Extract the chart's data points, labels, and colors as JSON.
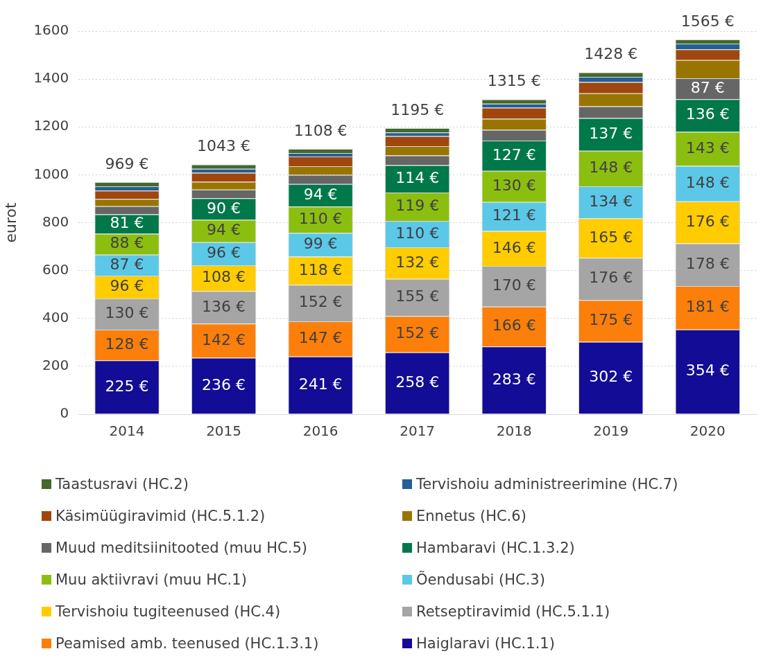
{
  "chart_data": {
    "type": "bar",
    "stacked": true,
    "ylabel": "eurot",
    "categories": [
      "2014",
      "2015",
      "2016",
      "2017",
      "2018",
      "2019",
      "2020"
    ],
    "ylim": [
      0,
      1600
    ],
    "yticks": [
      0,
      200,
      400,
      600,
      800,
      1000,
      1200,
      1400,
      1600
    ],
    "grid": "y",
    "legend": "bottom",
    "series": [
      {
        "name": "Haiglaravi (HC.1.1)",
        "color": "#130c96",
        "values": [
          225,
          236,
          241,
          258,
          283,
          302,
          354
        ],
        "value_labels": [
          "225 €",
          "236 €",
          "241 €",
          "258 €",
          "283 €",
          "302 €",
          "354 €"
        ]
      },
      {
        "name": "Peamised amb. teenused (HC.1.3.1)",
        "color": "#fb7f0a",
        "values": [
          128,
          142,
          147,
          152,
          166,
          175,
          181
        ],
        "value_labels": [
          "128 €",
          "142 €",
          "147 €",
          "152 €",
          "166 €",
          "175 €",
          "181 €"
        ]
      },
      {
        "name": "Retseptiravimid (HC.5.1.1)",
        "color": "#a5a5a5",
        "values": [
          130,
          136,
          152,
          155,
          170,
          176,
          178
        ],
        "value_labels": [
          "130 €",
          "136 €",
          "152 €",
          "155 €",
          "170 €",
          "176 €",
          "178 €"
        ]
      },
      {
        "name": "Tervishoiu tugiteenused (HC.4)",
        "color": "#ffcc00",
        "values": [
          96,
          108,
          118,
          132,
          146,
          165,
          176
        ],
        "value_labels": [
          "96 €",
          "108 €",
          "118 €",
          "132 €",
          "146 €",
          "165 €",
          "176 €"
        ]
      },
      {
        "name": "Õendusabi (HC.3)",
        "color": "#5bc8e8",
        "values": [
          87,
          96,
          99,
          110,
          121,
          134,
          148
        ],
        "value_labels": [
          "87 €",
          "96 €",
          "99 €",
          "110 €",
          "121 €",
          "134 €",
          "148 €"
        ]
      },
      {
        "name": "Muu aktiivravi (muu HC.1)",
        "color": "#8cbe10",
        "values": [
          88,
          94,
          110,
          119,
          130,
          148,
          143
        ],
        "value_labels": [
          "88 €",
          "94 €",
          "110 €",
          "119 €",
          "130 €",
          "148 €",
          "143 €"
        ]
      },
      {
        "name": "Hambaravi (HC.1.3.2)",
        "color": "#00784a",
        "values": [
          81,
          90,
          94,
          114,
          127,
          137,
          136
        ],
        "value_labels": [
          "81 €",
          "90 €",
          "94 €",
          "114 €",
          "127 €",
          "137 €",
          "136 €"
        ]
      },
      {
        "name": "Muud meditsiinitooted (muu HC.5)",
        "color": "#666666",
        "values": [
          34,
          36,
          39,
          41,
          45,
          49,
          87
        ],
        "value_labels": [
          null,
          null,
          null,
          null,
          null,
          null,
          "87 €"
        ]
      },
      {
        "name": "Ennetus (HC.6)",
        "color": "#987500",
        "values": [
          30,
          33,
          36,
          39,
          46,
          54,
          76
        ]
      },
      {
        "name": "Käsimüügiravimid (HC.5.1.2)",
        "color": "#a0460f",
        "values": [
          35,
          37,
          40,
          42,
          46,
          47,
          45
        ]
      },
      {
        "name": "Tervishoiu administreerimine (HC.7)",
        "color": "#245f96",
        "values": [
          18,
          17,
          15,
          15,
          17,
          22,
          24
        ]
      },
      {
        "name": "Taastusravi (HC.2)",
        "color": "#43692b",
        "values": [
          17,
          18,
          17,
          18,
          18,
          19,
          17
        ]
      }
    ],
    "totals": [
      "969 €",
      "1043 €",
      "1108 €",
      "1195 €",
      "1315 €",
      "1428 €",
      "1565 €"
    ]
  }
}
